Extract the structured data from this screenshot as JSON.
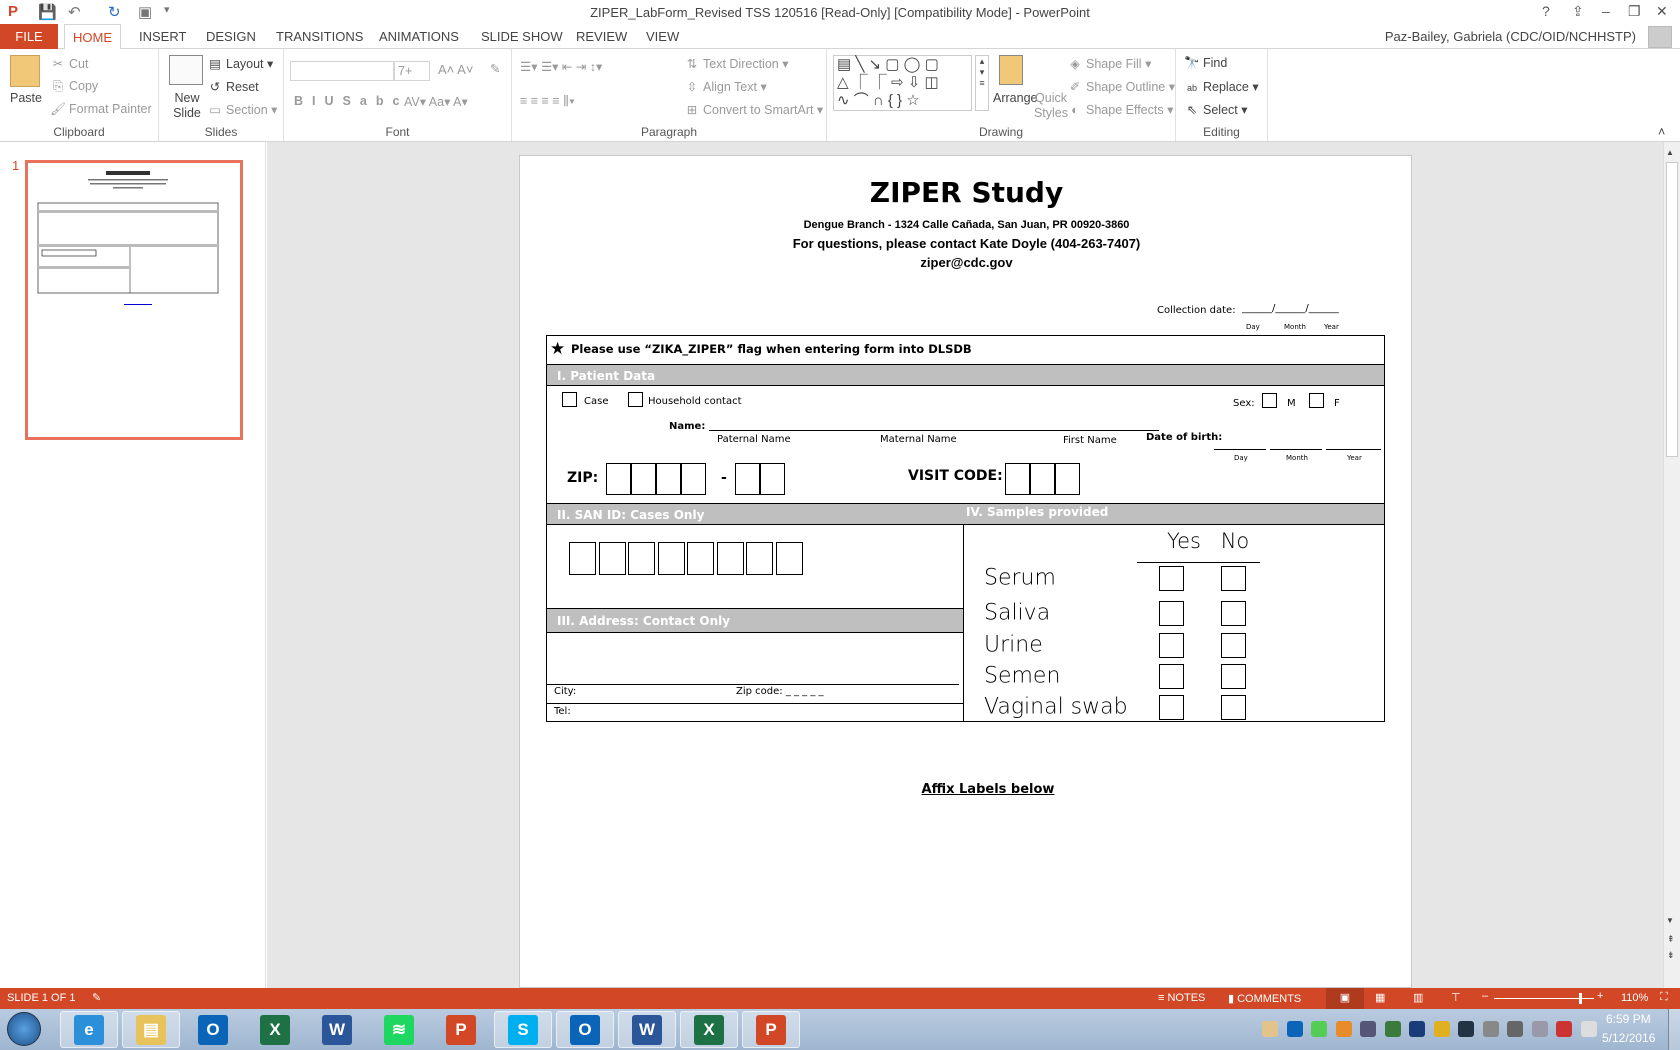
{
  "window": {
    "title": "ZIPER_LabForm_Revised TSS 120516 [Read-Only] [Compatibility Mode] - PowerPoint",
    "user": "Paz-Bailey, Gabriela (CDC/OID/NCHHSTP)",
    "help": "?",
    "minimize": "–",
    "restore": "❐",
    "close": "✕"
  },
  "tabs": [
    "FILE",
    "HOME",
    "INSERT",
    "DESIGN",
    "TRANSITIONS",
    "ANIMATIONS",
    "SLIDE SHOW",
    "REVIEW",
    "VIEW"
  ],
  "ribbon": {
    "clipboard": {
      "label": "Clipboard",
      "paste": "Paste",
      "cut": "Cut",
      "copy": "Copy",
      "format_painter": "Format Painter"
    },
    "slides": {
      "label": "Slides",
      "new_slide": "New Slide",
      "layout": "Layout",
      "reset": "Reset",
      "section": "Section"
    },
    "font": {
      "label": "Font",
      "font_name": "",
      "font_size": "7+"
    },
    "paragraph": {
      "label": "Paragraph",
      "text_direction": "Text Direction",
      "align_text": "Align Text",
      "convert": "Convert to SmartArt"
    },
    "drawing": {
      "label": "Drawing",
      "arrange": "Arrange",
      "quick_styles": "Quick Styles",
      "shape_fill": "Shape Fill",
      "shape_outline": "Shape Outline",
      "shape_effects": "Shape Effects"
    },
    "editing": {
      "label": "Editing",
      "find": "Find",
      "replace": "Replace",
      "select": "Select"
    }
  },
  "thumbnail": {
    "number": "1"
  },
  "slide": {
    "title": "ZIPER Study",
    "address": "Dengue Branch - 1324 Calle Cañada, San Juan, PR 00920-3860",
    "contact": "For questions, please contact Kate Doyle (404-263-7407)",
    "email": "ziper@cdc.gov",
    "collection_date": "Collection date:",
    "date_line": "______/______/______",
    "day": "Day",
    "month": "Month",
    "year": "Year",
    "flag_note": "Please use “ZIKA_ZIPER” flag when entering form into DLSDB",
    "section1": "I. Patient Data",
    "case": "Case",
    "household": "Household contact",
    "sex": "Sex:",
    "m": "M",
    "f": "F",
    "name": "Name:",
    "paternal": "Paternal Name",
    "maternal": "Maternal Name",
    "first": "First Name",
    "dob": "Date of birth:",
    "zip": "ZIP:",
    "dash": "-",
    "visit_code": "VISIT CODE:",
    "section2": "II. SAN ID: Cases Only",
    "section3": "III. Address: Contact Only",
    "city": "City:",
    "zip_code": "Zip code: _ _ _ _ _",
    "tel": "Tel:",
    "section4": "IV. Samples provided",
    "yes": "Yes",
    "no": "No",
    "samples": [
      "Serum",
      "Saliva",
      "Urine",
      "Semen",
      "Vaginal swab"
    ],
    "affix": "Affix Labels below"
  },
  "status": {
    "slide": "SLIDE 1 OF 1",
    "notes": "NOTES",
    "comments": "COMMENTS",
    "zoom": "110%",
    "zoom_level": 110
  },
  "taskbar": {
    "time": "6:59 PM",
    "date": "5/12/2016",
    "apps": [
      {
        "name": "internet-explorer",
        "glyph": "e",
        "color": "#2b8fd9"
      },
      {
        "name": "file-explorer",
        "glyph": "▤",
        "color": "#e8c25a"
      },
      {
        "name": "outlook",
        "glyph": "O",
        "color": "#0a64b8"
      },
      {
        "name": "excel",
        "glyph": "X",
        "color": "#1e7145"
      },
      {
        "name": "word",
        "glyph": "W",
        "color": "#2b579a"
      },
      {
        "name": "spotify",
        "glyph": "≋",
        "color": "#1ed760"
      },
      {
        "name": "powerpoint",
        "glyph": "P",
        "color": "#d24726"
      },
      {
        "name": "skype",
        "glyph": "S",
        "color": "#00aff0"
      },
      {
        "name": "outlook-open",
        "glyph": "O",
        "color": "#0a64b8"
      },
      {
        "name": "word-open",
        "glyph": "W",
        "color": "#2b579a"
      },
      {
        "name": "excel-open",
        "glyph": "X",
        "color": "#1e7145"
      },
      {
        "name": "powerpoint-open",
        "glyph": "P",
        "color": "#d24726"
      }
    ]
  },
  "colors": {
    "accent": "#d24726",
    "section_header": "#bfbfbf",
    "thumb_border": "#e8735a"
  }
}
